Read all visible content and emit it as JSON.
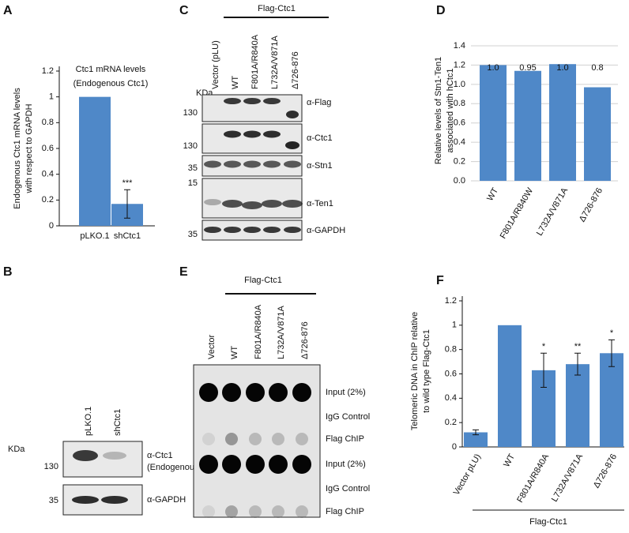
{
  "chart_data": [
    {
      "type": "bar",
      "panel_label": "A",
      "title": "Ctc1 mRNA levels",
      "subtitle": "(Endogenous Ctc1)",
      "ylabel": [
        "Endogenous Ctc1 mRNA levels",
        "with respect to GAPDH"
      ],
      "categories": [
        "pLKO.1",
        "shCtc1"
      ],
      "values": [
        1,
        0.17
      ],
      "errors": [
        null,
        0.11
      ],
      "significance": [
        null,
        "***"
      ],
      "color": "#4f88c8",
      "ylim": [
        0,
        1.2
      ],
      "yticks": [
        0,
        0.2,
        0.4,
        0.6,
        0.8,
        1,
        1.2
      ],
      "grid": false
    },
    {
      "type": "bar",
      "panel_label": "D",
      "ylabel": [
        "Relative levels of Stn1-Ten1",
        "associated with hCtc1"
      ],
      "categories": [
        "WT",
        "F801A/R840W",
        "L732A/V871A",
        "Δ726-876"
      ],
      "values": [
        1.2,
        1.14,
        1.21,
        0.97
      ],
      "annotations": [
        "1.0",
        "0.95",
        "1.0",
        "0.8"
      ],
      "color": "#4f88c8",
      "ylim": [
        0,
        1.4
      ],
      "yticks": [
        {
          "value": 0,
          "label": "0.0"
        },
        0.2,
        0.4,
        0.6,
        0.8,
        {
          "value": 1,
          "label": "1.0"
        },
        1.2,
        1.4
      ],
      "grid": true
    },
    {
      "type": "bar",
      "panel_label": "F",
      "ylabel": [
        "Telomeric DNA in ChIP relative",
        "to wild type Flag-Ctc1"
      ],
      "categories": [
        "Vector pLU)",
        "WT",
        "F801A/R840A",
        "L732A/V871A",
        "Δ726-876"
      ],
      "values": [
        0.12,
        1,
        0.63,
        0.68,
        0.77
      ],
      "errors": [
        0.02,
        null,
        0.14,
        0.09,
        0.11
      ],
      "significance": [
        null,
        null,
        "*",
        "**",
        "*"
      ],
      "group_label": "Flag-Ctc1",
      "color": "#4f88c8",
      "ylim": [
        0,
        1.2
      ],
      "yticks": [
        0,
        0.2,
        0.4,
        0.6,
        0.8,
        1,
        1.2
      ],
      "grid": false
    }
  ],
  "blots": {
    "B": {
      "panel_label": "B",
      "lanes": [
        "pLKO.1",
        "shCtc1"
      ],
      "size_unit": "KDa",
      "markers": [
        "130",
        "35"
      ],
      "antibodies": [
        "α-Ctc1",
        "α-GAPDH"
      ],
      "note": "(Endogenous)"
    },
    "C": {
      "panel_label": "C",
      "group": "Flag-Ctc1",
      "lanes": [
        "Vector (pLU)",
        "WT",
        "F801A/R840A",
        "L732A/V871A",
        "Δ726-876"
      ],
      "size_unit": "KDa",
      "markers": [
        "130",
        "130",
        "35",
        "15",
        "35"
      ],
      "antibodies": [
        "α-Flag",
        "α-Ctc1",
        "α-Stn1",
        "α-Ten1",
        "α-GAPDH"
      ]
    },
    "E": {
      "panel_label": "E",
      "group": "Flag-Ctc1",
      "lanes": [
        "Vector",
        "WT",
        "F801A/R840A",
        "L732A/V871A",
        "Δ726-876"
      ],
      "rows": [
        "Input (2%)",
        "IgG Control",
        "Flag ChIP",
        "Input (2%)",
        "IgG Control",
        "Flag ChIP"
      ]
    }
  }
}
